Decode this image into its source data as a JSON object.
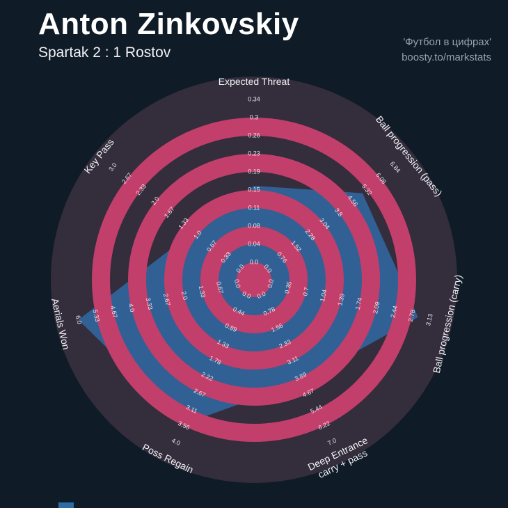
{
  "header": {
    "title": "Anton Zinkovskiy",
    "subtitle": "Spartak 2 : 1 Rostov",
    "credit_line1": "'Футбол в цифрах'",
    "credit_line2": "boosty.to/markstats"
  },
  "colors": {
    "background": "#0f1b27",
    "ring_dark": "#332d3c",
    "ring_pink": "#c23f6b",
    "polygon": "#31639a",
    "tick_text": "#e3e6ea",
    "axis_text": "#f2f2f5",
    "credit_text": "#98a1ad"
  },
  "chart_data": {
    "type": "radar",
    "title": "Anton Zinkovskiy",
    "subtitle": "Spartak 2 : 1 Rostov",
    "rings": 9,
    "legend_position": "none",
    "grid": "concentric-rings-alternating",
    "params": [
      {
        "label": "Expected Threat",
        "max": 0.34,
        "value": 0.16,
        "ticks": [
          "0.0",
          "0.04",
          "0.08",
          "0.11",
          "0.15",
          "0.19",
          "0.23",
          "0.26",
          "0.3",
          "0.34"
        ]
      },
      {
        "label": "Ball progression (pass)",
        "max": 6.84,
        "value": 5.1,
        "ticks": [
          "0.0",
          "0.76",
          "1.52",
          "2.28",
          "3.04",
          "3.8",
          "4.56",
          "5.32",
          "6.08",
          "6.84"
        ]
      },
      {
        "label": "Ball progression (carry)",
        "max": 3.13,
        "value": 2.9,
        "ticks": [
          "0.0",
          "0.35",
          "0.7",
          "1.04",
          "1.39",
          "1.74",
          "2.09",
          "2.44",
          "2.78",
          "3.13"
        ]
      },
      {
        "label": "Deep Entrance\ncarry + pass",
        "max": 7.0,
        "value": 4.1,
        "ticks": [
          "0.0",
          "0.78",
          "1.56",
          "2.33",
          "3.11",
          "3.89",
          "4.67",
          "5.44",
          "6.22",
          "7.0"
        ]
      },
      {
        "label": "Poss Regain",
        "max": 4.0,
        "value": 3.5,
        "ticks": [
          "0.0",
          "0.44",
          "0.89",
          "1.33",
          "1.78",
          "2.22",
          "2.67",
          "3.11",
          "3.56",
          "4.0"
        ]
      },
      {
        "label": "Aerials Won",
        "max": 6.0,
        "value": 6.0,
        "ticks": [
          "0.0",
          "0.67",
          "1.33",
          "2.0",
          "2.67",
          "3.33",
          "4.0",
          "4.67",
          "5.33",
          "6.0"
        ]
      },
      {
        "label": "Key Pass",
        "max": 3.0,
        "value": 1.1,
        "ticks": [
          "0.0",
          "0.33",
          "0.67",
          "1.0",
          "1.33",
          "1.67",
          "2.0",
          "2.33",
          "2.67",
          "3.0"
        ]
      }
    ]
  }
}
